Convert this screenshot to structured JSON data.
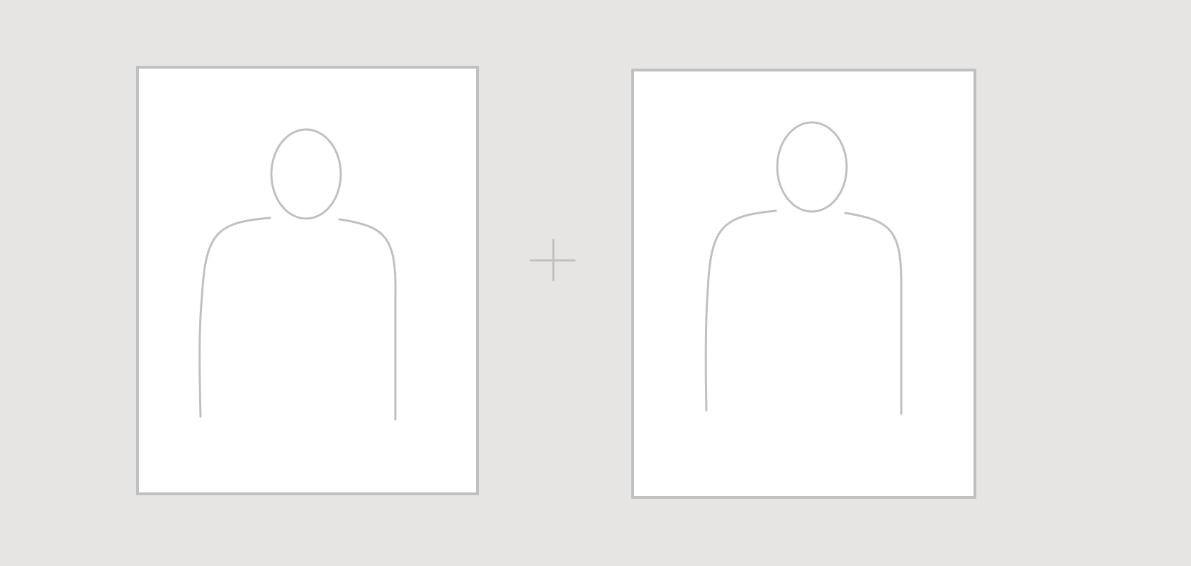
{
  "colors": {
    "background": "#e6e5e3",
    "frame_fill": "#ffffff",
    "line": "#c0c0c0"
  },
  "icons": {
    "left_frame": "person-silhouette-icon",
    "operator": "plus-icon",
    "right_frame": "person-silhouette-icon"
  }
}
